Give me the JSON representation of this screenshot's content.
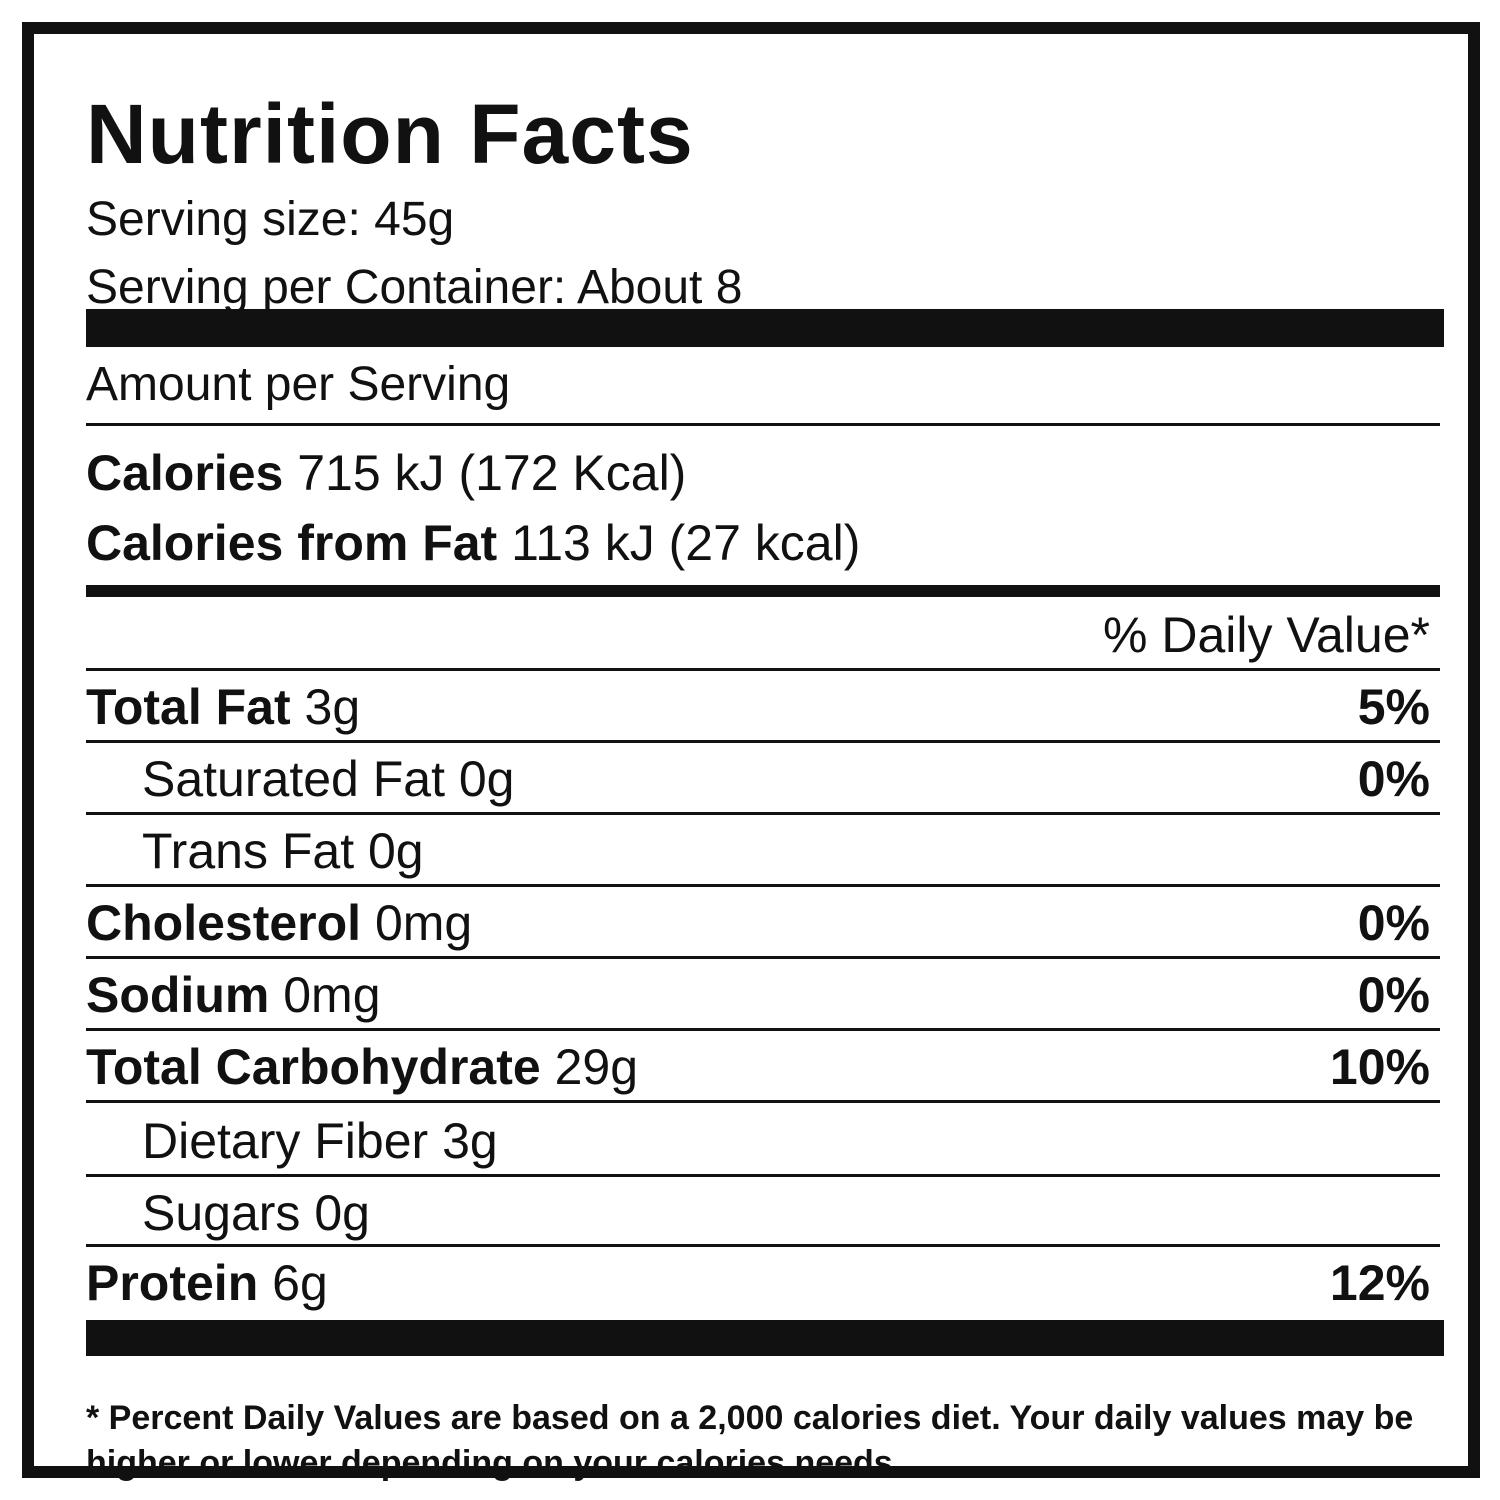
{
  "label": {
    "title": "Nutrition Facts",
    "serving_size": "Serving size: 45g",
    "servings_per_container": "Serving per Container: About 8",
    "amount_per_serving": "Amount per Serving",
    "calories": {
      "label": "Calories",
      "value": "715 kJ (172 Kcal)"
    },
    "calories_from_fat": {
      "label": "Calories from Fat",
      "value": "113 kJ (27 kcal)"
    },
    "daily_value_header": "% Daily Value*",
    "nutrients": [
      {
        "name": "Total Fat",
        "amount": "3g",
        "dv": "5%"
      },
      {
        "name": "Saturated Fat",
        "amount": "0g",
        "dv": "0%"
      },
      {
        "name": "Trans Fat",
        "amount": "0g",
        "dv": ""
      },
      {
        "name": "Cholesterol",
        "amount": "0mg",
        "dv": "0%"
      },
      {
        "name": "Sodium",
        "amount": "0mg",
        "dv": "0%"
      },
      {
        "name": "Total Carbohydrate",
        "amount": "29g",
        "dv": "10%"
      },
      {
        "name": "Dietary Fiber",
        "amount": "3g",
        "dv": ""
      },
      {
        "name": "Sugars",
        "amount": "0g",
        "dv": ""
      },
      {
        "name": "Protein",
        "amount": "6g",
        "dv": "12%"
      }
    ],
    "footnote": "* Percent Daily Values are based on a 2,000 calories diet. Your daily values may be higher or lower depending on your calories needs."
  }
}
